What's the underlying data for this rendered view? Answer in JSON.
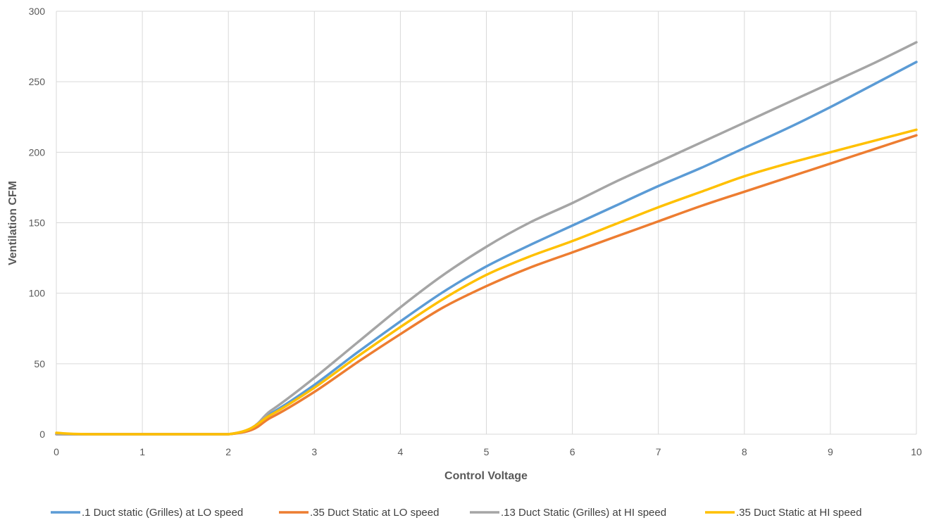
{
  "chart_data": {
    "type": "line",
    "xlabel": "Control Voltage",
    "ylabel": "Ventilation CFM",
    "xlim": [
      0,
      10
    ],
    "ylim": [
      0,
      300
    ],
    "x_ticks": [
      "0",
      "1",
      "2",
      "3",
      "4",
      "5",
      "6",
      "7",
      "8",
      "9",
      "10"
    ],
    "y_ticks": [
      "0",
      "50",
      "100",
      "150",
      "200",
      "250",
      "300"
    ],
    "grid": true,
    "legend_position": "bottom",
    "series": [
      {
        "name": ".1 Duct static (Grilles) at LO speed",
        "color": "#5B9BD5",
        "points": [
          [
            0,
            0
          ],
          [
            2,
            0
          ],
          [
            2.5,
            15
          ],
          [
            3,
            35
          ],
          [
            3.5,
            58
          ],
          [
            4,
            80
          ],
          [
            4.5,
            101
          ],
          [
            5,
            119
          ],
          [
            5.5,
            134
          ],
          [
            6,
            148
          ],
          [
            6.5,
            162
          ],
          [
            7,
            176
          ],
          [
            7.5,
            189
          ],
          [
            8,
            203
          ],
          [
            8.5,
            217
          ],
          [
            9,
            232
          ],
          [
            9.5,
            248
          ],
          [
            10,
            264
          ]
        ]
      },
      {
        "name": ".35 Duct Static at LO speed",
        "color": "#ED7D31",
        "points": [
          [
            0,
            0
          ],
          [
            2,
            0
          ],
          [
            2.5,
            12
          ],
          [
            3,
            30
          ],
          [
            3.5,
            51
          ],
          [
            4,
            71
          ],
          [
            4.5,
            90
          ],
          [
            5,
            105
          ],
          [
            5.5,
            118
          ],
          [
            6,
            129
          ],
          [
            6.5,
            140
          ],
          [
            7,
            151
          ],
          [
            7.5,
            162
          ],
          [
            8,
            172
          ],
          [
            8.5,
            182
          ],
          [
            9,
            192
          ],
          [
            9.5,
            202
          ],
          [
            10,
            212
          ]
        ]
      },
      {
        "name": ".13 Duct Static (Grilles) at HI speed",
        "color": "#A5A5A5",
        "points": [
          [
            0,
            0
          ],
          [
            2,
            0
          ],
          [
            2.5,
            17
          ],
          [
            3,
            40
          ],
          [
            3.5,
            65
          ],
          [
            4,
            90
          ],
          [
            4.5,
            113
          ],
          [
            5,
            133
          ],
          [
            5.5,
            150
          ],
          [
            6,
            164
          ],
          [
            6.5,
            179
          ],
          [
            7,
            193
          ],
          [
            7.5,
            207
          ],
          [
            8,
            221
          ],
          [
            8.5,
            235
          ],
          [
            9,
            249
          ],
          [
            9.5,
            263
          ],
          [
            10,
            278
          ]
        ]
      },
      {
        "name": ".35 Duct Static at HI speed",
        "color": "#FFC000",
        "points": [
          [
            0,
            1
          ],
          [
            0.4,
            0
          ],
          [
            2,
            0
          ],
          [
            2.5,
            14
          ],
          [
            3,
            33
          ],
          [
            3.5,
            55
          ],
          [
            4,
            76
          ],
          [
            4.5,
            96
          ],
          [
            5,
            113
          ],
          [
            5.5,
            126
          ],
          [
            6,
            137
          ],
          [
            6.5,
            149
          ],
          [
            7,
            161
          ],
          [
            7.5,
            172
          ],
          [
            8,
            183
          ],
          [
            8.5,
            192
          ],
          [
            9,
            200
          ],
          [
            9.5,
            208
          ],
          [
            10,
            216
          ]
        ]
      }
    ]
  }
}
